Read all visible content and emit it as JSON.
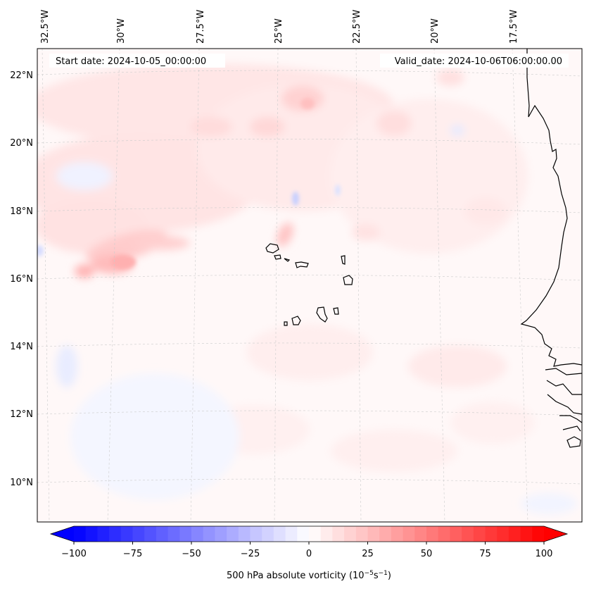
{
  "map": {
    "start_date_text": "Start date: 2024-10-05_00:00:00",
    "valid_date_text": "Valid_date: 2024-10-06T06:00:00.00",
    "lon_labels": [
      "32.5°W",
      "30°W",
      "27.5°W",
      "25°W",
      "22.5°W",
      "20°W",
      "17.5°W"
    ],
    "lat_labels": [
      "22°N",
      "20°N",
      "18°N",
      "16°N",
      "14°N",
      "12°N",
      "10°N"
    ],
    "field": "500 hPa absolute vorticity",
    "region": "Cabo Verde and West African coast"
  },
  "colorbar": {
    "label_main": "500 hPa absolute vorticity (10",
    "label_exp1": "−5",
    "label_mid": "s",
    "label_exp2": "−1",
    "label_end": ")",
    "ticks": [
      "−100",
      "−75",
      "−50",
      "−25",
      "0",
      "25",
      "50",
      "75",
      "100"
    ],
    "min": -100,
    "max": 100,
    "levels": 40,
    "low_color": "#0000ff",
    "mid_color": "#ffffff",
    "high_color": "#ff0000"
  }
}
